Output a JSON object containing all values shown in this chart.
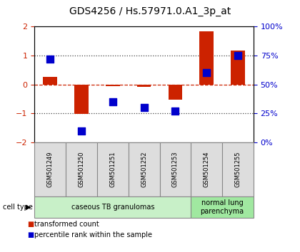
{
  "title": "GDS4256 / Hs.57971.0.A1_3p_at",
  "samples": [
    "GSM501249",
    "GSM501250",
    "GSM501251",
    "GSM501252",
    "GSM501253",
    "GSM501254",
    "GSM501255"
  ],
  "red_values": [
    0.25,
    -1.02,
    -0.05,
    -0.08,
    -0.52,
    1.82,
    1.18
  ],
  "blue_percentiles": [
    72,
    10,
    35,
    30,
    27,
    60,
    75
  ],
  "ylim": [
    -2,
    2
  ],
  "cell_types": [
    {
      "label": "caseous TB granulomas",
      "n_samples": 5,
      "color": "#c8f0c8"
    },
    {
      "label": "normal lung\nparenchyma",
      "n_samples": 2,
      "color": "#a0e8a0"
    }
  ],
  "legend_red": "transformed count",
  "legend_blue": "percentile rank within the sample",
  "red_color": "#cc2200",
  "blue_color": "#0000cc",
  "bar_width": 0.45,
  "blue_marker_size": 55,
  "dotted_line_color": "#444444",
  "zero_line_color": "#cc2200",
  "bg_color": "#ffffff",
  "plot_bg_color": "#ffffff",
  "tick_label_color_left": "#cc2200",
  "tick_label_color_right": "#0000cc",
  "cell_type_label": "cell type",
  "title_fontsize": 10,
  "tick_fontsize": 8,
  "sample_fontsize": 6,
  "celltype_fontsize": 7,
  "legend_fontsize": 7
}
